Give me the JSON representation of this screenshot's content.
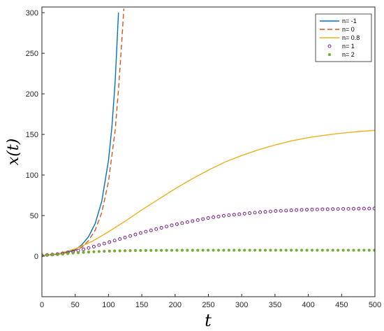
{
  "chart_data": {
    "type": "line",
    "xlabel": "t",
    "ylabel": "x(t)",
    "xlim": [
      0,
      500
    ],
    "ylim": [
      -50,
      307
    ],
    "x_ticks": [
      0,
      50,
      100,
      150,
      200,
      250,
      300,
      350,
      400,
      450,
      500
    ],
    "y_ticks": [
      0,
      50,
      100,
      150,
      200,
      250,
      300
    ],
    "grid": false,
    "legend_position": "top-right",
    "series": [
      {
        "name": "n= -1",
        "style": "solid",
        "color": "#0072BD",
        "points": [
          [
            0,
            1
          ],
          [
            20,
            2
          ],
          [
            40,
            5
          ],
          [
            50,
            8
          ],
          [
            60,
            14
          ],
          [
            70,
            24
          ],
          [
            80,
            40
          ],
          [
            90,
            68
          ],
          [
            100,
            118
          ],
          [
            105,
            158
          ],
          [
            110,
            215
          ],
          [
            115,
            300
          ]
        ]
      },
      {
        "name": "n= 0",
        "style": "dashed",
        "color": "#D95319",
        "points": [
          [
            0,
            1
          ],
          [
            20,
            2
          ],
          [
            40,
            4.5
          ],
          [
            50,
            7
          ],
          [
            60,
            11
          ],
          [
            70,
            19
          ],
          [
            80,
            32
          ],
          [
            90,
            54
          ],
          [
            100,
            92
          ],
          [
            110,
            155
          ],
          [
            115,
            205
          ],
          [
            120,
            265
          ],
          [
            123,
            305
          ]
        ]
      },
      {
        "name": "n= 0.8",
        "style": "solid",
        "color": "#EDB120",
        "points": [
          [
            0,
            1
          ],
          [
            25,
            3
          ],
          [
            50,
            9
          ],
          [
            75,
            18
          ],
          [
            100,
            30
          ],
          [
            125,
            43
          ],
          [
            150,
            57
          ],
          [
            175,
            70
          ],
          [
            200,
            83
          ],
          [
            225,
            95
          ],
          [
            250,
            106
          ],
          [
            275,
            116
          ],
          [
            300,
            124
          ],
          [
            325,
            131
          ],
          [
            350,
            137
          ],
          [
            375,
            142
          ],
          [
            400,
            146
          ],
          [
            425,
            149
          ],
          [
            450,
            151.5
          ],
          [
            475,
            153.5
          ],
          [
            500,
            155
          ]
        ]
      },
      {
        "name": "n= 1",
        "style": "circles",
        "color": "#7E2F8E",
        "points": [
          [
            0,
            1
          ],
          [
            25,
            2.5
          ],
          [
            50,
            6
          ],
          [
            75,
            11
          ],
          [
            100,
            17
          ],
          [
            125,
            23
          ],
          [
            150,
            29
          ],
          [
            175,
            34
          ],
          [
            200,
            39
          ],
          [
            225,
            43
          ],
          [
            250,
            47
          ],
          [
            275,
            50
          ],
          [
            300,
            52
          ],
          [
            325,
            54
          ],
          [
            350,
            55.5
          ],
          [
            375,
            56.5
          ],
          [
            400,
            57.3
          ],
          [
            425,
            57.8
          ],
          [
            450,
            58.2
          ],
          [
            475,
            58.5
          ],
          [
            500,
            58.7
          ]
        ]
      },
      {
        "name": "n= 2",
        "style": "dots",
        "color": "#77AC30",
        "points": [
          [
            0,
            1
          ],
          [
            25,
            2
          ],
          [
            50,
            4
          ],
          [
            75,
            5.3
          ],
          [
            100,
            6.2
          ],
          [
            125,
            6.7
          ],
          [
            150,
            7
          ],
          [
            200,
            7.2
          ],
          [
            250,
            7.3
          ],
          [
            300,
            7.3
          ],
          [
            350,
            7.3
          ],
          [
            400,
            7.3
          ],
          [
            450,
            7.3
          ],
          [
            500,
            7.3
          ]
        ]
      }
    ]
  }
}
